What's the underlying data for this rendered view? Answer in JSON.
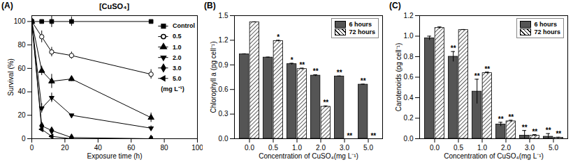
{
  "chart_data": [
    {
      "type": "line",
      "panel_label": "(A)",
      "title": "[CuSO₄]",
      "x_label": "Exposure time (h)",
      "y_label": "Survival (%)",
      "x": [
        0,
        6,
        12,
        24,
        72
      ],
      "xlim": [
        0,
        100
      ],
      "xticks": [
        0,
        20,
        40,
        60,
        80,
        100
      ],
      "ylim": [
        0,
        105
      ],
      "yticks": [
        0,
        20,
        40,
        60,
        80,
        100
      ],
      "legend": "right",
      "legend_title": "(mg L⁻¹)",
      "series": [
        {
          "name": "Control",
          "color": "#000000",
          "marker": "square",
          "values": [
            100,
            100,
            100,
            100,
            100
          ],
          "errors": [
            0,
            0,
            5,
            4,
            0
          ]
        },
        {
          "name": "0.5",
          "color": "#000000",
          "marker": "open-circle",
          "values": [
            100,
            87,
            74,
            71,
            55
          ],
          "errors": [
            0,
            5,
            4,
            3,
            4
          ]
        },
        {
          "name": "1.0",
          "color": "#000000",
          "marker": "triangle",
          "values": [
            100,
            58,
            49,
            51,
            18
          ],
          "errors": [
            0,
            4,
            6,
            2,
            4
          ]
        },
        {
          "name": "2.0",
          "color": "#000000",
          "marker": "triangle-down",
          "values": [
            100,
            26,
            35,
            20,
            9
          ],
          "errors": [
            0,
            4,
            4,
            1,
            2
          ]
        },
        {
          "name": "3.0",
          "color": "#000000",
          "marker": "diamond",
          "values": [
            100,
            11,
            7,
            1,
            0
          ],
          "errors": [
            0,
            2,
            2,
            0,
            0
          ]
        },
        {
          "name": "5.0",
          "color": "#000000",
          "marker": "triangle-left",
          "values": [
            100,
            8,
            2,
            0,
            0
          ],
          "errors": [
            0,
            1,
            0,
            0,
            0
          ]
        }
      ]
    },
    {
      "type": "bar",
      "panel_label": "(B)",
      "x_label": "Concentration of CuSO₄(mg L⁻¹)",
      "y_label": "Chlorophyll a (pg cell⁻¹)",
      "categories": [
        "0.0",
        "0.5",
        "1.0",
        "2.0",
        "3.0",
        "5.0"
      ],
      "ylim": [
        0,
        1.5
      ],
      "yticks": [
        {
          "value": 0,
          "label": "0.0"
        },
        0.3,
        0.6,
        0.9,
        1.2,
        1.5
      ],
      "legend": "upper right",
      "series": [
        {
          "name": "6 hours",
          "color": "#555555",
          "values": [
            1.03,
            0.99,
            0.91,
            0.77,
            0.76,
            0.66
          ],
          "errors": [
            0.005,
            0.005,
            0.01,
            0.01,
            0.005,
            0.005
          ],
          "significance": [
            null,
            null,
            "*",
            "**",
            "**",
            "**"
          ]
        },
        {
          "name": "72 hours",
          "color": "#ffffff",
          "values": [
            1.42,
            1.19,
            0.85,
            0.39,
            0,
            0
          ],
          "errors": [
            0.005,
            0.01,
            0.01,
            0.01,
            0,
            0
          ],
          "significance": [
            null,
            "*",
            "**",
            "**",
            "**",
            "**"
          ]
        }
      ]
    },
    {
      "type": "bar",
      "panel_label": "(C)",
      "x_label": "Concentration of CuSO₄(mg L⁻¹)",
      "y_label": "Carotenoids (pg cell⁻¹)",
      "categories": [
        "0.0",
        "0.5",
        "1.0",
        "2.0",
        "3.0",
        "5.0"
      ],
      "ylim": [
        0,
        1.2
      ],
      "yticks": [
        {
          "value": 0,
          "label": "0.0"
        },
        0.2,
        0.4,
        0.6,
        0.8,
        {
          "value": 1,
          "label": "1.0"
        },
        1.2
      ],
      "legend": "upper right",
      "series": [
        {
          "name": "6 hours",
          "color": "#555555",
          "values": [
            0.98,
            0.8,
            0.46,
            0.14,
            0.03,
            0.02
          ],
          "errors": [
            0.02,
            0.05,
            0.12,
            0.02,
            0.05,
            0.03
          ],
          "significance": [
            null,
            "**",
            "**",
            "**",
            "**",
            "**"
          ]
        },
        {
          "name": "72 hours",
          "color": "#ffffff",
          "values": [
            1.08,
            1.06,
            0.64,
            0.17,
            0.03,
            0.01
          ],
          "errors": [
            0.01,
            0.005,
            0.01,
            0.01,
            0.01,
            0.005
          ],
          "significance": [
            null,
            null,
            "**",
            "**",
            "**",
            "**"
          ]
        }
      ]
    }
  ]
}
